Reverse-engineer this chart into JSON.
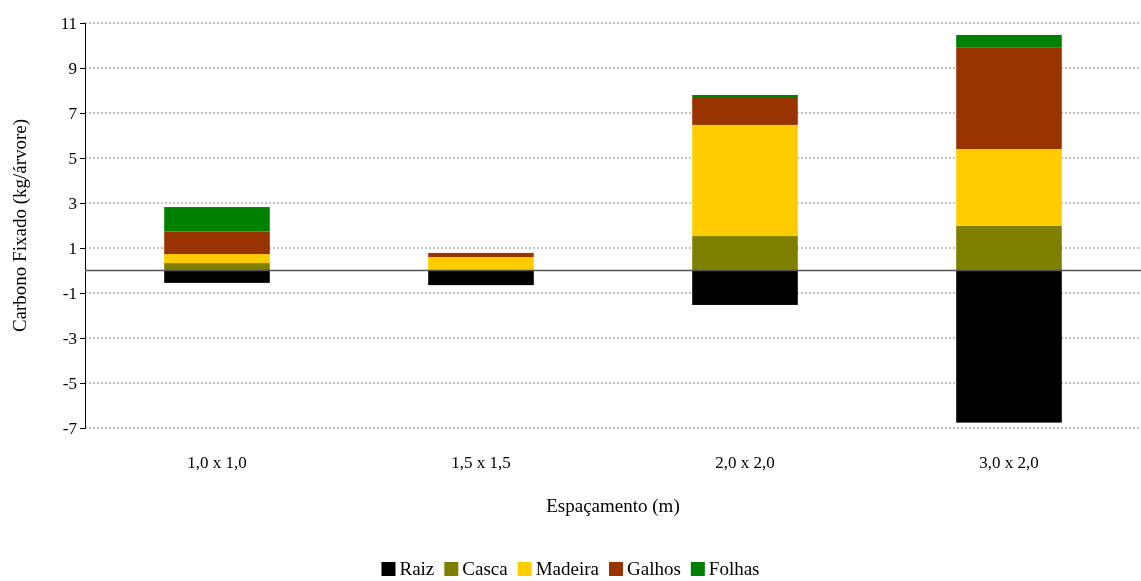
{
  "chart_data": {
    "type": "bar",
    "stacked": true,
    "xlabel": "Espaçamento (m)",
    "ylabel": "Carbono Fixado (kg/árvore)",
    "categories": [
      "1,0 x 1,0",
      "1,5 x 1,5",
      "2,0 x 2,0",
      "3,0 x 2,0"
    ],
    "series": [
      {
        "name": "Raiz",
        "color": "#000000",
        "values": [
          -0.55,
          -0.65,
          -1.53,
          -6.76
        ]
      },
      {
        "name": "Casca",
        "color": "#808000",
        "values": [
          0.33,
          0,
          1.53,
          1.98
        ]
      },
      {
        "name": "Madeira",
        "color": "#ffcc00",
        "values": [
          0.4,
          0.6,
          4.94,
          3.42
        ]
      },
      {
        "name": "Galhos",
        "color": "#993300",
        "values": [
          1.0,
          0.18,
          1.24,
          4.5
        ]
      },
      {
        "name": "Folhas",
        "color": "#008000",
        "values": [
          1.09,
          0,
          0.09,
          0.57
        ]
      }
    ],
    "ylim": [
      -7,
      11
    ],
    "yticks": [
      -7,
      -5,
      -3,
      -1,
      1,
      3,
      5,
      7,
      9,
      11
    ],
    "grid": "y",
    "legend": "bottom"
  }
}
